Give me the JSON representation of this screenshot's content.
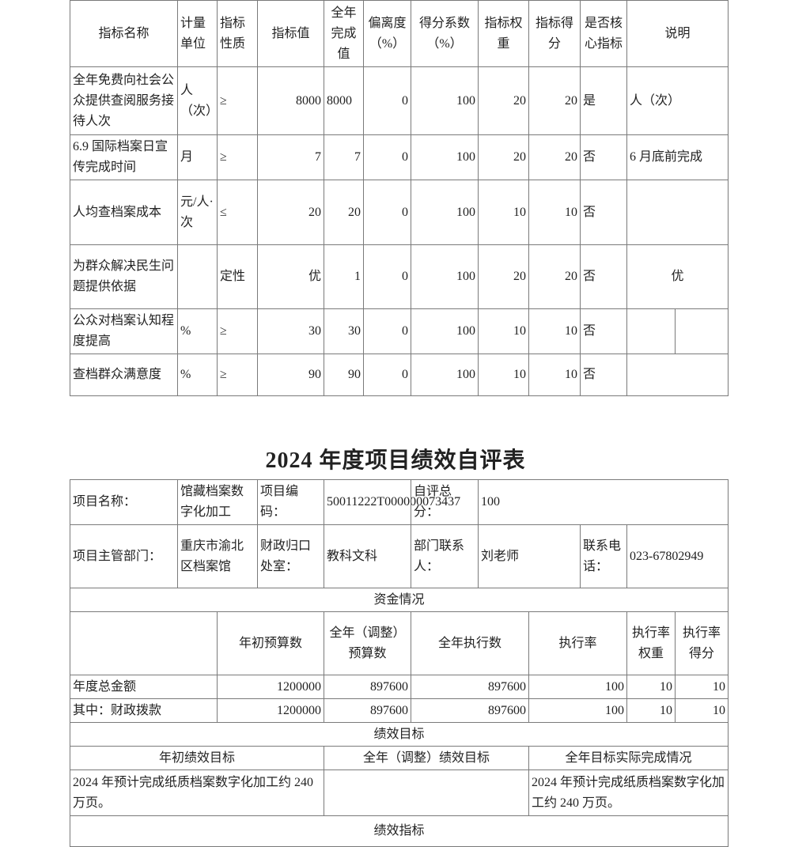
{
  "indicator_table": {
    "headers": [
      "指标名称",
      "计量单位",
      "指标性质",
      "指标值",
      "全年完成值",
      "偏离度（%）",
      "得分系数（%）",
      "指标权重",
      "指标得分",
      "是否核心指标",
      "说明"
    ],
    "rows": [
      [
        "全年免费向社会公众提供查阅服务接待人次",
        "人（次）",
        "≥",
        "8000",
        "8000",
        "0",
        "100",
        "20",
        "20",
        "是",
        "人（次）"
      ],
      [
        "6.9 国际档案日宣传完成时间",
        "月",
        "≥",
        "7",
        "7",
        "0",
        "100",
        "20",
        "20",
        "否",
        "6 月底前完成"
      ],
      [
        "人均查档案成本",
        "元/人·次",
        "≤",
        "20",
        "20",
        "0",
        "100",
        "10",
        "10",
        "否",
        ""
      ],
      [
        "为群众解决民生问题提供依据",
        "",
        "定性",
        "优",
        "1",
        "0",
        "100",
        "20",
        "20",
        "否",
        "优"
      ],
      [
        "公众对档案认知程度提高",
        "%",
        "≥",
        "30",
        "30",
        "0",
        "100",
        "10",
        "10",
        "否",
        ""
      ],
      [
        "查档群众满意度",
        "%",
        "≥",
        "90",
        "90",
        "0",
        "100",
        "10",
        "10",
        "否",
        ""
      ]
    ]
  },
  "title": "2024 年度项目绩效自评表",
  "project": {
    "name_label": "项目名称：",
    "name": "馆藏档案数字化加工",
    "code_label": "项目编码：",
    "code": "50011222T000000073437",
    "score_label": "自评总分：",
    "score": "100",
    "dept_label": "项目主管部门：",
    "dept": "重庆市渝北区档案馆",
    "finance_label": "财政归口处室：",
    "finance": "教科文科",
    "contact_label": "部门联系人：",
    "contact": "刘老师",
    "phone_label": "联系电话：",
    "phone": "023-67802949"
  },
  "funds": {
    "section": "资金情况",
    "headers": [
      "年初预算数",
      "全年（调整）预算数",
      "全年执行数",
      "执行率",
      "执行率权重",
      "执行率得分"
    ],
    "rows": [
      [
        "年度总金额",
        "1200000",
        "897600",
        "897600",
        "100",
        "10",
        "10"
      ],
      [
        "其中：财政拨款",
        "1200000",
        "897600",
        "897600",
        "100",
        "10",
        "10"
      ]
    ]
  },
  "goals": {
    "section": "绩效目标",
    "headers": [
      "年初绩效目标",
      "全年（调整）绩效目标",
      "全年目标实际完成情况"
    ],
    "values": [
      "2024 年预计完成纸质档案数字化加工约 240 万页。",
      "",
      "2024 年预计完成纸质档案数字化加工约 240 万页。"
    ]
  },
  "indicators_section": "绩效指标"
}
